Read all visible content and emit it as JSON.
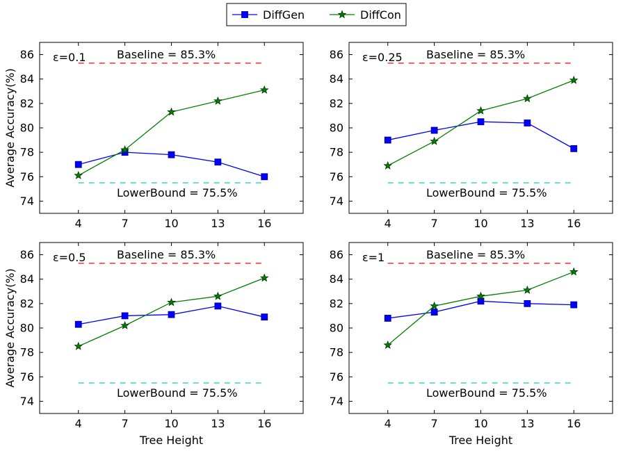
{
  "legend": {
    "entries": [
      {
        "label": "DiffGen",
        "color": "#0000ff",
        "marker": "square"
      },
      {
        "label": "DiffCon",
        "color": "#007f00",
        "marker": "star"
      }
    ]
  },
  "chart_data": [
    {
      "type": "line",
      "annotation": "ε=0.1",
      "x": [
        4,
        7,
        10,
        13,
        16
      ],
      "series": [
        {
          "name": "DiffGen",
          "values": [
            77.0,
            78.0,
            77.8,
            77.2,
            76.0
          ]
        },
        {
          "name": "DiffCon",
          "values": [
            76.1,
            78.2,
            81.3,
            82.2,
            83.1
          ]
        }
      ],
      "baseline": {
        "value": 85.3,
        "label": "Baseline = 85.3%",
        "color": "#ff0000"
      },
      "lowerbound": {
        "value": 75.5,
        "label": "LowerBound = 75.5%",
        "color": "#00bfbf"
      },
      "xlabel": "",
      "ylabel": "Average Accuracy(%)",
      "xticks": [
        "4",
        "7",
        "10",
        "13",
        "16"
      ],
      "yticks": [
        "74",
        "76",
        "78",
        "80",
        "82",
        "84",
        "86"
      ],
      "xlim": [
        1.5,
        18.5
      ],
      "ylim": [
        73,
        87
      ]
    },
    {
      "type": "line",
      "annotation": "ε=0.25",
      "x": [
        4,
        7,
        10,
        13,
        16
      ],
      "series": [
        {
          "name": "DiffGen",
          "values": [
            79.0,
            79.8,
            80.5,
            80.4,
            78.3
          ]
        },
        {
          "name": "DiffCon",
          "values": [
            76.9,
            78.9,
            81.4,
            82.4,
            83.9
          ]
        }
      ],
      "baseline": {
        "value": 85.3,
        "label": "Baseline = 85.3%",
        "color": "#ff0000"
      },
      "lowerbound": {
        "value": 75.5,
        "label": "LowerBound = 75.5%",
        "color": "#00bfbf"
      },
      "xlabel": "",
      "ylabel": "",
      "xticks": [
        "4",
        "7",
        "10",
        "13",
        "16"
      ],
      "yticks": [
        "74",
        "76",
        "78",
        "80",
        "82",
        "84",
        "86"
      ],
      "xlim": [
        1.5,
        18.5
      ],
      "ylim": [
        73,
        87
      ]
    },
    {
      "type": "line",
      "annotation": "ε=0.5",
      "x": [
        4,
        7,
        10,
        13,
        16
      ],
      "series": [
        {
          "name": "DiffGen",
          "values": [
            80.3,
            81.0,
            81.1,
            81.8,
            80.9
          ]
        },
        {
          "name": "DiffCon",
          "values": [
            78.5,
            80.2,
            82.1,
            82.6,
            84.1
          ]
        }
      ],
      "baseline": {
        "value": 85.3,
        "label": "Baseline = 85.3%",
        "color": "#ff0000"
      },
      "lowerbound": {
        "value": 75.5,
        "label": "LowerBound = 75.5%",
        "color": "#00bfbf"
      },
      "xlabel": "Tree Height",
      "ylabel": "Average Accuracy(%)",
      "xticks": [
        "4",
        "7",
        "10",
        "13",
        "16"
      ],
      "yticks": [
        "74",
        "76",
        "78",
        "80",
        "82",
        "84",
        "86"
      ],
      "xlim": [
        1.5,
        18.5
      ],
      "ylim": [
        73,
        87
      ]
    },
    {
      "type": "line",
      "annotation": "ε=1",
      "x": [
        4,
        7,
        10,
        13,
        16
      ],
      "series": [
        {
          "name": "DiffGen",
          "values": [
            80.8,
            81.3,
            82.2,
            82.0,
            81.9
          ]
        },
        {
          "name": "DiffCon",
          "values": [
            78.6,
            81.8,
            82.6,
            83.1,
            84.6
          ]
        }
      ],
      "baseline": {
        "value": 85.3,
        "label": "Baseline = 85.3%",
        "color": "#ff0000"
      },
      "lowerbound": {
        "value": 75.5,
        "label": "LowerBound = 75.5%",
        "color": "#00bfbf"
      },
      "xlabel": "Tree Height",
      "ylabel": "",
      "xticks": [
        "4",
        "7",
        "10",
        "13",
        "16"
      ],
      "yticks": [
        "74",
        "76",
        "78",
        "80",
        "82",
        "84",
        "86"
      ],
      "xlim": [
        1.5,
        18.5
      ],
      "ylim": [
        73,
        87
      ]
    }
  ]
}
